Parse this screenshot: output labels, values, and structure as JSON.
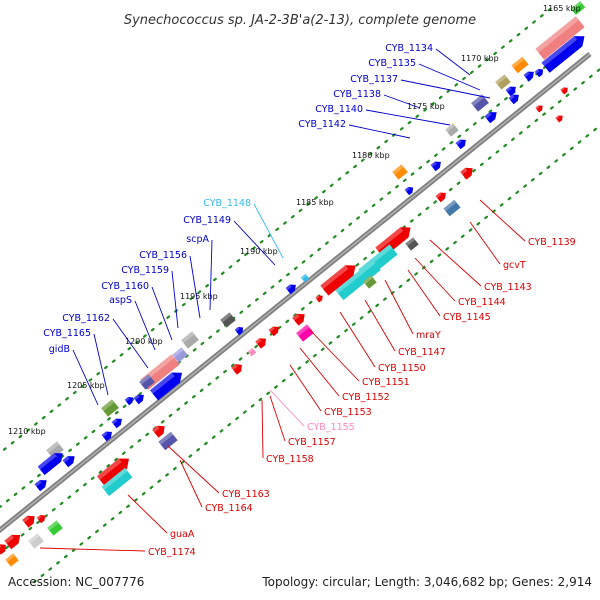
{
  "title": "Synechococcus sp. JA-2-3B'a(2-13), complete genome",
  "accession": "Accession: NC_007776",
  "summary": "Topology: circular; Length: 3,046,682 bp; Genes: 2,914",
  "colors": {
    "forward_label": "#0000cc",
    "reverse_label": "#dd0000",
    "highlight_forward": "#33bbee",
    "highlight_reverse": "#ff88bb",
    "backbone": "#808080",
    "tick_dots": "#228b22"
  },
  "kbp_ticks": [
    "1165 kbp",
    "1170 kbp",
    "1175 kbp",
    "1180 kbp",
    "1185 kbp",
    "1190 kbp",
    "1195 kbp",
    "1200 kbp",
    "1205 kbp",
    "1210 kbp"
  ],
  "forward_labels": [
    {
      "name": "CYB_1134",
      "color": "#0000cc"
    },
    {
      "name": "CYB_1135",
      "color": "#0000cc"
    },
    {
      "name": "CYB_1137",
      "color": "#0000cc"
    },
    {
      "name": "CYB_1138",
      "color": "#0000cc"
    },
    {
      "name": "CYB_1140",
      "color": "#0000cc"
    },
    {
      "name": "CYB_1142",
      "color": "#0000cc"
    },
    {
      "name": "CYB_1148",
      "color": "#33bbee"
    },
    {
      "name": "CYB_1149",
      "color": "#0000cc"
    },
    {
      "name": "scpA",
      "color": "#0000cc"
    },
    {
      "name": "CYB_1156",
      "color": "#0000cc"
    },
    {
      "name": "CYB_1159",
      "color": "#0000cc"
    },
    {
      "name": "CYB_1160",
      "color": "#0000cc"
    },
    {
      "name": "aspS",
      "color": "#0000cc"
    },
    {
      "name": "CYB_1162",
      "color": "#0000cc"
    },
    {
      "name": "CYB_1165",
      "color": "#0000cc"
    },
    {
      "name": "gidB",
      "color": "#0000cc"
    }
  ],
  "reverse_labels": [
    {
      "name": "CYB_1139",
      "color": "#dd0000"
    },
    {
      "name": "gcvT",
      "color": "#dd0000"
    },
    {
      "name": "CYB_1143",
      "color": "#dd0000"
    },
    {
      "name": "CYB_1144",
      "color": "#dd0000"
    },
    {
      "name": "CYB_1145",
      "color": "#dd0000"
    },
    {
      "name": "mraY",
      "color": "#dd0000"
    },
    {
      "name": "CYB_1147",
      "color": "#dd0000"
    },
    {
      "name": "CYB_1150",
      "color": "#dd0000"
    },
    {
      "name": "CYB_1151",
      "color": "#dd0000"
    },
    {
      "name": "CYB_1152",
      "color": "#dd0000"
    },
    {
      "name": "CYB_1153",
      "color": "#dd0000"
    },
    {
      "name": "CYB_1155",
      "color": "#ff88bb"
    },
    {
      "name": "CYB_1157",
      "color": "#dd0000"
    },
    {
      "name": "CYB_1158",
      "color": "#dd0000"
    },
    {
      "name": "CYB_1163",
      "color": "#dd0000"
    },
    {
      "name": "CYB_1164",
      "color": "#dd0000"
    },
    {
      "name": "guaA",
      "color": "#dd0000"
    },
    {
      "name": "CYB_1174",
      "color": "#dd0000"
    }
  ]
}
